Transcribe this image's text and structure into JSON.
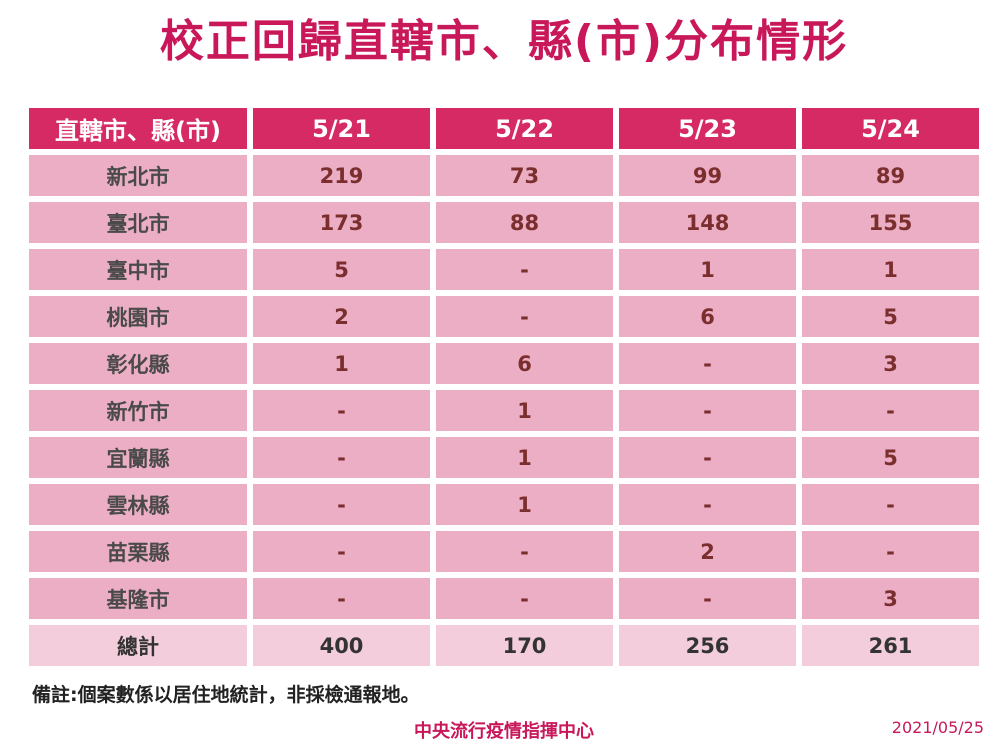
{
  "title": "校正回歸直轄市、縣(市)分布情形",
  "table": {
    "headers": [
      "直轄市、縣(市)",
      "5/21",
      "5/22",
      "5/23",
      "5/24"
    ],
    "rows": [
      [
        "新北市",
        "219",
        "73",
        "99",
        "89"
      ],
      [
        "臺北市",
        "173",
        "88",
        "148",
        "155"
      ],
      [
        "臺中市",
        "5",
        "-",
        "1",
        "1"
      ],
      [
        "桃園市",
        "2",
        "-",
        "6",
        "5"
      ],
      [
        "彰化縣",
        "1",
        "6",
        "-",
        "3"
      ],
      [
        "新竹市",
        "-",
        "1",
        "-",
        "-"
      ],
      [
        "宜蘭縣",
        "-",
        "1",
        "-",
        "5"
      ],
      [
        "雲林縣",
        "-",
        "1",
        "-",
        "-"
      ],
      [
        "苗栗縣",
        "-",
        "-",
        "2",
        "-"
      ],
      [
        "基隆市",
        "-",
        "-",
        "-",
        "3"
      ]
    ],
    "total": [
      "總計",
      "400",
      "170",
      "256",
      "261"
    ]
  },
  "note": "備註:個案數係以居住地統計，非採檢通報地。",
  "source": "中央流行疫情指揮中心",
  "date": "2021/05/25",
  "colors": {
    "accent": "#c8185a",
    "header_bg": "#d52a63",
    "cell_bg": "#ecaec4",
    "total_bg": "#f3cddb",
    "value_text": "#7a2e2e"
  }
}
